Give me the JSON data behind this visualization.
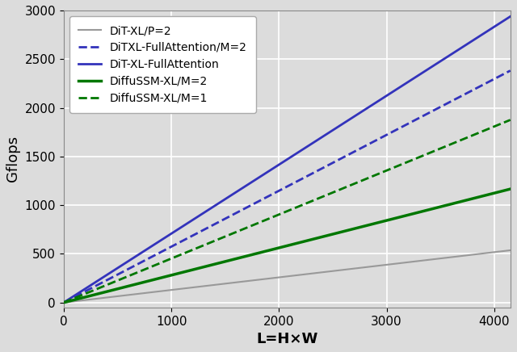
{
  "title": "",
  "xlabel": "L=H×W",
  "ylabel": "Gflops",
  "xlim": [
    0,
    4150
  ],
  "ylim": [
    -50,
    3000
  ],
  "xticks": [
    0,
    1000,
    2000,
    3000,
    4000
  ],
  "yticks": [
    0,
    500,
    1000,
    1500,
    2000,
    2500,
    3000
  ],
  "series": [
    {
      "label": "DiT-XL/P=2",
      "color": "#999999",
      "linestyle": "solid",
      "linewidth": 1.5,
      "slope": 0.1294
    },
    {
      "label": "DiTXL-FullAttention/M=2",
      "color": "#3333bb",
      "linestyle": "dashed",
      "linewidth": 2.0,
      "slope": 0.574
    },
    {
      "label": "DiT-XL-FullAttention",
      "color": "#3333bb",
      "linestyle": "solid",
      "linewidth": 2.0,
      "slope": 0.708
    },
    {
      "label": "DiffuSSM-XL/M=2",
      "color": "#007700",
      "linestyle": "solid",
      "linewidth": 2.5,
      "slope": 0.281
    },
    {
      "label": "DiffuSSM-XL/M=1",
      "color": "#007700",
      "linestyle": "dashed",
      "linewidth": 2.0,
      "slope": 0.452
    }
  ],
  "legend_loc": "upper left",
  "legend_fontsize": 10,
  "axis_label_fontsize": 13,
  "tick_fontsize": 11,
  "background_color": "#dcdcdc",
  "grid_color": "#ffffff",
  "grid_linewidth": 1.2
}
